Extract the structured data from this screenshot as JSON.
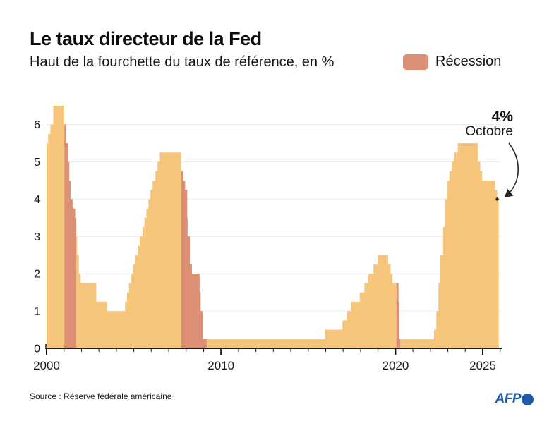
{
  "header": {
    "title": "Le taux directeur de la Fed",
    "subtitle": "Haut de la fourchette du taux de référence, en %"
  },
  "legend": {
    "label": "Récession"
  },
  "annotation": {
    "value": "4%",
    "label": "Octobre"
  },
  "source": {
    "label": "Source : Réserve fédérale américaine"
  },
  "branding": {
    "logo_text": "AFP",
    "logo_color": "#1F5CA9"
  },
  "colors": {
    "area": "#F4C57A",
    "recession": "#DC8F74",
    "grid": "#ECECEC",
    "axis": "#1A1A1A",
    "annotation_ink": "#222222"
  },
  "chart_data": {
    "type": "area",
    "title": "Le taux directeur de la Fed",
    "subtitle": "Haut de la fourchette du taux de référence, en %",
    "step": "after",
    "unit": "%",
    "x_range": [
      2000,
      2025.92
    ],
    "ylim": [
      0,
      6.5
    ],
    "y_ticks": [
      0,
      1,
      2,
      3,
      4,
      5,
      6
    ],
    "x_ticks": [
      {
        "year": 2000,
        "label": "2000"
      },
      {
        "year": 2010,
        "label": "2010"
      },
      {
        "year": 2020,
        "label": "2020"
      },
      {
        "year": 2025,
        "label": "2025"
      }
    ],
    "minor_tick_start": 2000,
    "minor_tick_end": 2026,
    "grid": true,
    "legend_position": "top-right",
    "points": [
      [
        2000.0,
        5.5
      ],
      [
        2000.09,
        5.75
      ],
      [
        2000.22,
        6.0
      ],
      [
        2000.38,
        6.5
      ],
      [
        2001.01,
        6.0
      ],
      [
        2001.09,
        5.5
      ],
      [
        2001.22,
        5.0
      ],
      [
        2001.3,
        4.5
      ],
      [
        2001.37,
        4.0
      ],
      [
        2001.49,
        3.75
      ],
      [
        2001.64,
        3.5
      ],
      [
        2001.71,
        3.0
      ],
      [
        2001.76,
        2.5
      ],
      [
        2001.85,
        2.0
      ],
      [
        2001.95,
        1.75
      ],
      [
        2002.85,
        1.25
      ],
      [
        2003.48,
        1.0
      ],
      [
        2004.5,
        1.25
      ],
      [
        2004.61,
        1.5
      ],
      [
        2004.72,
        1.75
      ],
      [
        2004.86,
        2.0
      ],
      [
        2004.96,
        2.25
      ],
      [
        2005.09,
        2.5
      ],
      [
        2005.22,
        2.75
      ],
      [
        2005.34,
        3.0
      ],
      [
        2005.5,
        3.25
      ],
      [
        2005.61,
        3.5
      ],
      [
        2005.72,
        3.75
      ],
      [
        2005.84,
        4.0
      ],
      [
        2005.95,
        4.25
      ],
      [
        2006.08,
        4.5
      ],
      [
        2006.24,
        4.75
      ],
      [
        2006.36,
        5.0
      ],
      [
        2006.49,
        5.25
      ],
      [
        2007.71,
        4.75
      ],
      [
        2007.83,
        4.5
      ],
      [
        2007.94,
        4.25
      ],
      [
        2008.06,
        3.5
      ],
      [
        2008.08,
        3.0
      ],
      [
        2008.21,
        2.25
      ],
      [
        2008.33,
        2.0
      ],
      [
        2008.77,
        1.5
      ],
      [
        2008.83,
        1.0
      ],
      [
        2008.96,
        0.25
      ],
      [
        2015.96,
        0.5
      ],
      [
        2016.96,
        0.75
      ],
      [
        2017.21,
        1.0
      ],
      [
        2017.45,
        1.25
      ],
      [
        2017.95,
        1.5
      ],
      [
        2018.22,
        1.75
      ],
      [
        2018.45,
        2.0
      ],
      [
        2018.74,
        2.25
      ],
      [
        2018.97,
        2.5
      ],
      [
        2019.58,
        2.25
      ],
      [
        2019.72,
        2.0
      ],
      [
        2019.83,
        1.75
      ],
      [
        2020.17,
        1.25
      ],
      [
        2020.21,
        0.25
      ],
      [
        2022.21,
        0.5
      ],
      [
        2022.34,
        1.0
      ],
      [
        2022.46,
        1.75
      ],
      [
        2022.57,
        2.5
      ],
      [
        2022.73,
        3.25
      ],
      [
        2022.84,
        4.0
      ],
      [
        2022.96,
        4.5
      ],
      [
        2023.09,
        4.75
      ],
      [
        2023.22,
        5.0
      ],
      [
        2023.34,
        5.25
      ],
      [
        2023.57,
        5.5
      ],
      [
        2024.72,
        5.0
      ],
      [
        2024.86,
        4.75
      ],
      [
        2024.97,
        4.5
      ],
      [
        2025.71,
        4.25
      ],
      [
        2025.83,
        4.0
      ]
    ],
    "recessions": [
      [
        2001.02,
        2001.68
      ],
      [
        2007.73,
        2009.18
      ],
      [
        2020.06,
        2020.27
      ]
    ],
    "end_point": {
      "year": 2025.83,
      "value": 4.0,
      "value_label": "4%",
      "month_label": "Octobre"
    }
  }
}
